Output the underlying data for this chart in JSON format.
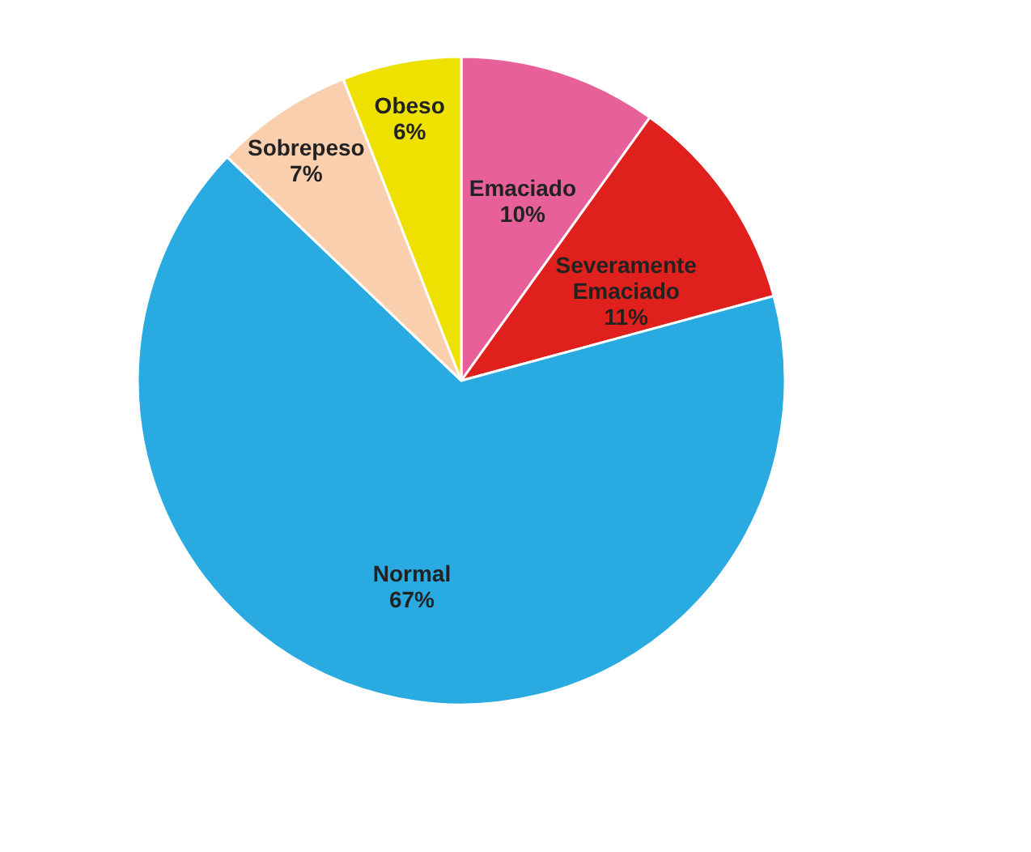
{
  "chart_data": {
    "type": "pie",
    "categories": [
      "Emaciado",
      "Severamente Emaciado",
      "Normal",
      "Sobrepeso",
      "Obeso"
    ],
    "values": [
      10,
      11,
      67,
      7,
      6
    ],
    "value_labels": [
      "10%",
      "11%",
      "67%",
      "7%",
      "6%"
    ],
    "colors": [
      "#e8609a",
      "#e0201c",
      "#29abe2",
      "#f9cfae",
      "#eee000"
    ],
    "legend": false
  }
}
